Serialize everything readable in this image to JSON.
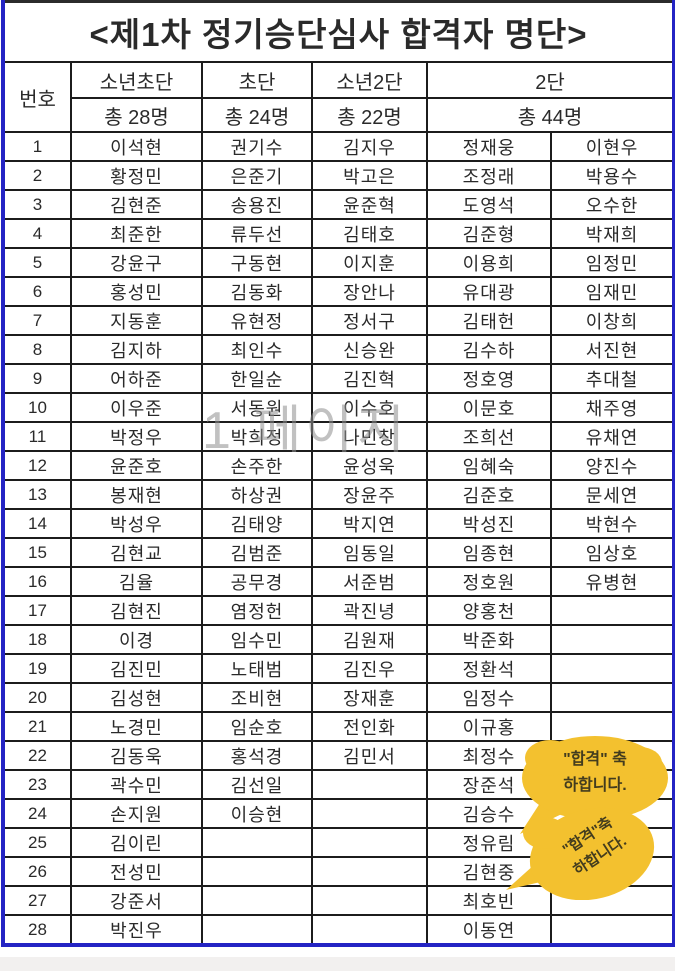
{
  "title": "<제1차 정기승단심사 합격자 명단>",
  "watermark": "1 페이지",
  "columns": {
    "no_label": "번호",
    "headers": [
      {
        "label": "소년초단",
        "count": "총 28명"
      },
      {
        "label": "초단",
        "count": "총 24명"
      },
      {
        "label": "소년2단",
        "count": "총 22명"
      },
      {
        "label": "2단",
        "count": "총 44명"
      }
    ]
  },
  "rows": [
    {
      "no": "1",
      "c1": "이석현",
      "c2": "권기수",
      "c3": "김지우",
      "c4": "정재웅",
      "c5": "이현우"
    },
    {
      "no": "2",
      "c1": "황정민",
      "c2": "은준기",
      "c3": "박고은",
      "c4": "조정래",
      "c5": "박용수"
    },
    {
      "no": "3",
      "c1": "김현준",
      "c2": "송용진",
      "c3": "윤준혁",
      "c4": "도영석",
      "c5": "오수한"
    },
    {
      "no": "4",
      "c1": "최준한",
      "c2": "류두선",
      "c3": "김태호",
      "c4": "김준형",
      "c5": "박재희"
    },
    {
      "no": "5",
      "c1": "강윤구",
      "c2": "구동현",
      "c3": "이지훈",
      "c4": "이용희",
      "c5": "임정민"
    },
    {
      "no": "6",
      "c1": "홍성민",
      "c2": "김동화",
      "c3": "장안나",
      "c4": "유대광",
      "c5": "임재민"
    },
    {
      "no": "7",
      "c1": "지동훈",
      "c2": "유현정",
      "c3": "정서구",
      "c4": "김태헌",
      "c5": "이창희"
    },
    {
      "no": "8",
      "c1": "김지하",
      "c2": "최인수",
      "c3": "신승완",
      "c4": "김수하",
      "c5": "서진현"
    },
    {
      "no": "9",
      "c1": "어하준",
      "c2": "한일순",
      "c3": "김진혁",
      "c4": "정호영",
      "c5": "추대철"
    },
    {
      "no": "10",
      "c1": "이우준",
      "c2": "서동원",
      "c3": "이수호",
      "c4": "이문호",
      "c5": "채주영"
    },
    {
      "no": "11",
      "c1": "박정우",
      "c2": "박희정",
      "c3": "나민창",
      "c4": "조희선",
      "c5": "유채연"
    },
    {
      "no": "12",
      "c1": "윤준호",
      "c2": "손주한",
      "c3": "윤성욱",
      "c4": "임혜숙",
      "c5": "양진수"
    },
    {
      "no": "13",
      "c1": "봉재현",
      "c2": "하상권",
      "c3": "장윤주",
      "c4": "김준호",
      "c5": "문세연"
    },
    {
      "no": "14",
      "c1": "박성우",
      "c2": "김태양",
      "c3": "박지연",
      "c4": "박성진",
      "c5": "박현수"
    },
    {
      "no": "15",
      "c1": "김현교",
      "c2": "김범준",
      "c3": "임동일",
      "c4": "임종현",
      "c5": "임상호"
    },
    {
      "no": "16",
      "c1": "김율",
      "c2": "공무경",
      "c3": "서준범",
      "c4": "정호원",
      "c5": "유병현"
    },
    {
      "no": "17",
      "c1": "김현진",
      "c2": "염정헌",
      "c3": "곽진녕",
      "c4": "양홍천",
      "c5": ""
    },
    {
      "no": "18",
      "c1": "이경",
      "c2": "임수민",
      "c3": "김원재",
      "c4": "박준화",
      "c5": ""
    },
    {
      "no": "19",
      "c1": "김진민",
      "c2": "노태범",
      "c3": "김진우",
      "c4": "정환석",
      "c5": ""
    },
    {
      "no": "20",
      "c1": "김성현",
      "c2": "조비현",
      "c3": "장재훈",
      "c4": "임정수",
      "c5": ""
    },
    {
      "no": "21",
      "c1": "노경민",
      "c2": "임순호",
      "c3": "전인화",
      "c4": "이규홍",
      "c5": ""
    },
    {
      "no": "22",
      "c1": "김동욱",
      "c2": "홍석경",
      "c3": "김민서",
      "c4": "최정수",
      "c5": ""
    },
    {
      "no": "23",
      "c1": "곽수민",
      "c2": "김선일",
      "c3": "",
      "c4": "장준석",
      "c5": ""
    },
    {
      "no": "24",
      "c1": "손지원",
      "c2": "이승현",
      "c3": "",
      "c4": "김승수",
      "c5": ""
    },
    {
      "no": "25",
      "c1": "김이린",
      "c2": "",
      "c3": "",
      "c4": "정유림",
      "c5": ""
    },
    {
      "no": "26",
      "c1": "전성민",
      "c2": "",
      "c3": "",
      "c4": "김현중",
      "c5": ""
    },
    {
      "no": "27",
      "c1": "강준서",
      "c2": "",
      "c3": "",
      "c4": "최호빈",
      "c5": ""
    },
    {
      "no": "28",
      "c1": "박진우",
      "c2": "",
      "c3": "",
      "c4": "이동연",
      "c5": ""
    }
  ],
  "bubbles": [
    {
      "line1": "\"합격\" 축",
      "line2": "하합니다."
    },
    {
      "line1": "\"합격\"축",
      "line2": "하합니다."
    }
  ],
  "colors": {
    "outer_border_blue": "#2424c4",
    "grid_border": "#1c1c1c",
    "bubble_yellow": "#f3c12f",
    "watermark_gray": "#8f8f8f"
  }
}
